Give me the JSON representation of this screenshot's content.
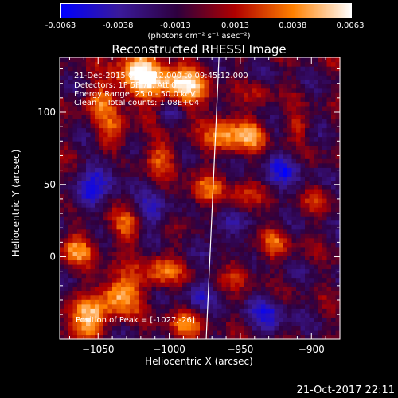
{
  "colorbar": {
    "ticks": [
      -0.0063,
      -0.0038,
      -0.0013,
      0.0013,
      0.0038,
      0.0063
    ],
    "tick_labels": [
      "-0.0063",
      "-0.0038",
      "-0.0013",
      "0.0013",
      "0.0038",
      "0.0063"
    ],
    "units": "(photons cm⁻² s⁻¹ asec⁻²)",
    "colors": [
      "#0000ff",
      "#3a1a9a",
      "#2e003e",
      "#b00000",
      "#ff8000",
      "#ffffff"
    ]
  },
  "annotations": {
    "time_range": "21-Dec-2015 09:35:12.000 to 09:45:12.000",
    "detectors": "Detectors: 1F 5F 7F, Att 0",
    "energy": "Energy Range: 25.0 - 50.0 keV",
    "method": "Clean    Total counts: 1.08E+04",
    "peak": "Position of Peak = [-1027,-26]"
  },
  "timestamp": "21-Oct-2017 22:11",
  "chart_data": {
    "type": "heatmap",
    "title": "Reconstructed RHESSI Image",
    "xlabel": "Heliocentric X (arcsec)",
    "ylabel": "Heliocentric Y (arcsec)",
    "xlim": [
      -1077,
      -880
    ],
    "ylim": [
      -57,
      138
    ],
    "x_ticks": [
      -1050,
      -1000,
      -950,
      -900
    ],
    "x_tick_labels": [
      "−1050",
      "−1000",
      "−950",
      "−900"
    ],
    "y_ticks": [
      0,
      50,
      100
    ],
    "y_tick_labels": [
      "0",
      "50",
      "100"
    ],
    "value_range": [
      -0.0063,
      0.0063
    ],
    "grid": false,
    "limb_line": [
      [
        -974,
        -57
      ],
      [
        -965,
        138
      ]
    ],
    "peak_position": [
      -1027,
      -26
    ],
    "cells": [
      64,
      64
    ]
  }
}
